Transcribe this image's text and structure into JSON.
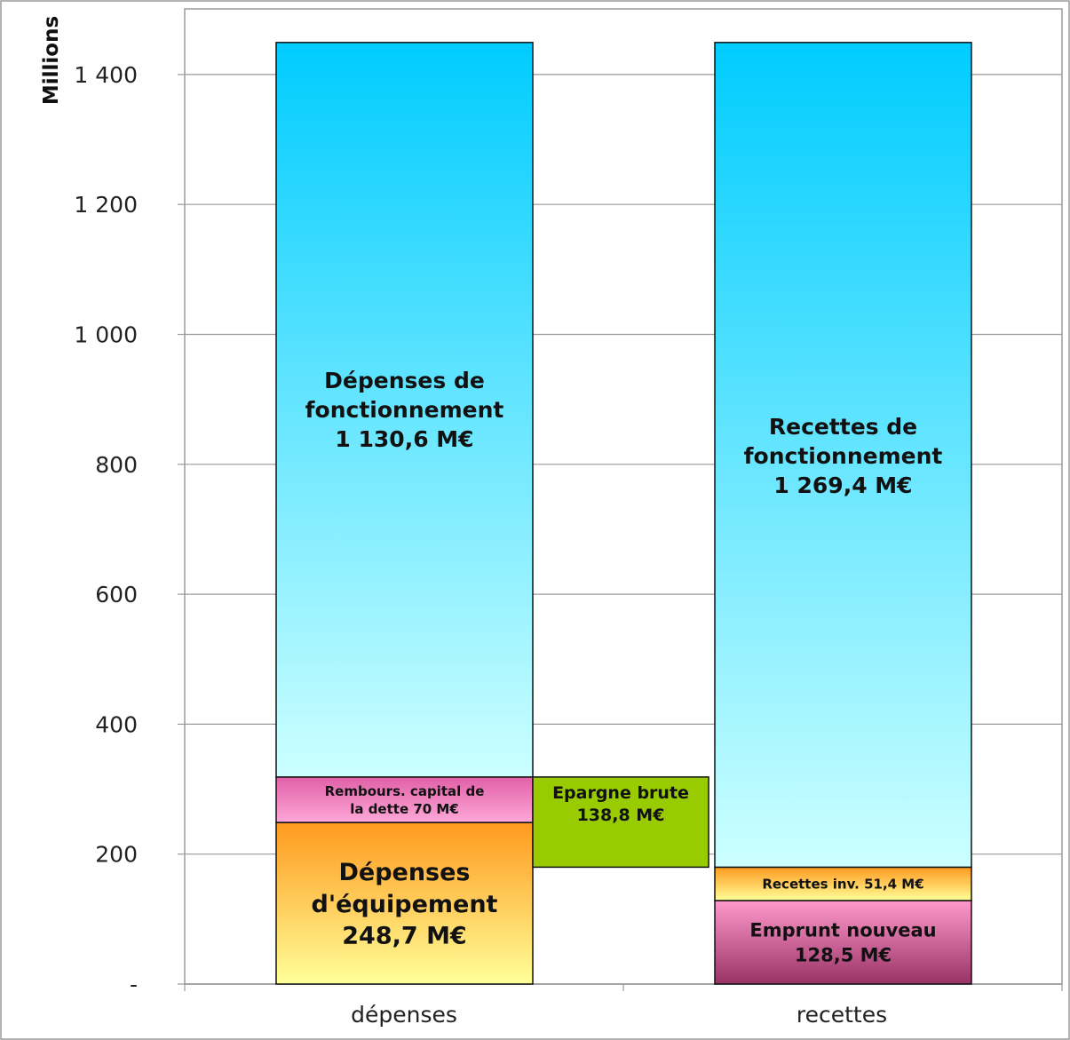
{
  "chart_data": {
    "type": "bar",
    "stacked": true,
    "ylabel": "Millions",
    "ylim": [
      0,
      1450
    ],
    "yticks": [
      0,
      200,
      400,
      600,
      800,
      1000,
      1200,
      1400
    ],
    "ytick_labels": [
      "-",
      "200",
      "400",
      "600",
      "800",
      "1 000",
      "1 200",
      "1 400"
    ],
    "grid": true,
    "categories": [
      "dépenses",
      "recettes"
    ],
    "segments": [
      {
        "name": "equipement",
        "category": 0,
        "base": 0,
        "value": 248.7,
        "label": [
          "Dépenses",
          "d'équipement",
          "248,7 M€"
        ],
        "color_top": "#ff9a1e",
        "color_bottom": "#ffff99",
        "font_size": 27
      },
      {
        "name": "remboursement",
        "category": 0,
        "base": 248.7,
        "value": 70,
        "label": [
          "Rembours. capital de",
          "la dette 70 M€"
        ],
        "color_top": "#e060a8",
        "color_bottom": "#ffa8d8",
        "font_size": 15
      },
      {
        "name": "fonctionnement-depenses",
        "category": 0,
        "base": 318.7,
        "value": 1130.6,
        "label": [
          "Dépenses de",
          "fonctionnement",
          "1 130,6 M€"
        ],
        "color_top": "#00ccff",
        "color_bottom": "#ccffff",
        "font_size": 25
      },
      {
        "name": "emprunt",
        "category": 1,
        "base": 0,
        "value": 128.5,
        "label": [
          "Emprunt nouveau",
          "128,5 M€"
        ],
        "color_top": "#ff99cc",
        "color_bottom": "#993366",
        "font_size": 21
      },
      {
        "name": "recettes-inv",
        "category": 1,
        "base": 128.5,
        "value": 51.4,
        "label": [
          "Recettes inv. 51,4 M€"
        ],
        "color_top": "#ff9a1e",
        "color_bottom": "#ffff99",
        "font_size": 15
      },
      {
        "name": "fonctionnement-recettes",
        "category": 1,
        "base": 179.9,
        "value": 1269.4,
        "label": [
          "Recettes de",
          "fonctionnement",
          "1 269,4 M€"
        ],
        "color_top": "#00ccff",
        "color_bottom": "#ccffff",
        "font_size": 25
      },
      {
        "name": "epargne",
        "category": "between",
        "base": 179.9,
        "value": 138.8,
        "label": [
          "Epargne brute",
          "138,8 M€"
        ],
        "color_top": "#99cc00",
        "color_bottom": "#99cc00",
        "font_size": 19
      }
    ]
  }
}
